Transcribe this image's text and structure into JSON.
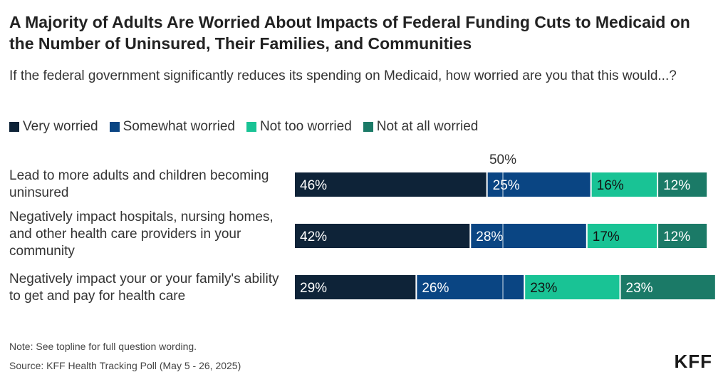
{
  "title": "A Majority of Adults Are Worried About Impacts of Federal Funding Cuts to Medicaid on the Number of Uninsured, Their Families, and Communities",
  "subtitle": "If the federal government significantly reduces its spending on Medicaid, how worried are you that this would...?",
  "note": "Note: See topline for full question wording.",
  "source": "Source: KFF Health Tracking Poll (May 5 - 26, 2025)",
  "logo": "KFF",
  "colors": {
    "very_worried": "#0e2338",
    "somewhat_worried": "#0a4583",
    "not_too_worried": "#19c395",
    "not_at_all_worried": "#1b7a67"
  },
  "chart_data": {
    "type": "bar",
    "orientation": "horizontal",
    "stacked": true,
    "title": "A Majority of Adults Are Worried About Impacts of Federal Funding Cuts to Medicaid on the Number of Uninsured, Their Families, and Communities",
    "subtitle": "If the federal government significantly reduces its spending on Medicaid, how worried are you that this would...?",
    "reference_line": {
      "value": 50,
      "label": "50%"
    },
    "legend": [
      "Very worried",
      "Somewhat worried",
      "Not too worried",
      "Not at all worried"
    ],
    "legend_position": "top-left",
    "grid": false,
    "xlim": [
      0,
      100
    ],
    "categories": [
      "Lead to more adults and children becoming uninsured",
      "Negatively impact hospitals, nursing homes, and other health care providers in your community",
      "Negatively impact your or your family's ability to get and pay for health care"
    ],
    "series": [
      {
        "name": "Very worried",
        "values": [
          46,
          42,
          29
        ],
        "labels": [
          "46%",
          "42%",
          "29%"
        ]
      },
      {
        "name": "Somewhat worried",
        "values": [
          25,
          28,
          26
        ],
        "labels": [
          "25%",
          "28%",
          "26%"
        ]
      },
      {
        "name": "Not too worried",
        "values": [
          16,
          17,
          23
        ],
        "labels": [
          "16%",
          "17%",
          "23%"
        ]
      },
      {
        "name": "Not at all worried",
        "values": [
          12,
          12,
          23
        ],
        "labels": [
          "12%",
          "12%",
          "23%"
        ]
      }
    ]
  }
}
